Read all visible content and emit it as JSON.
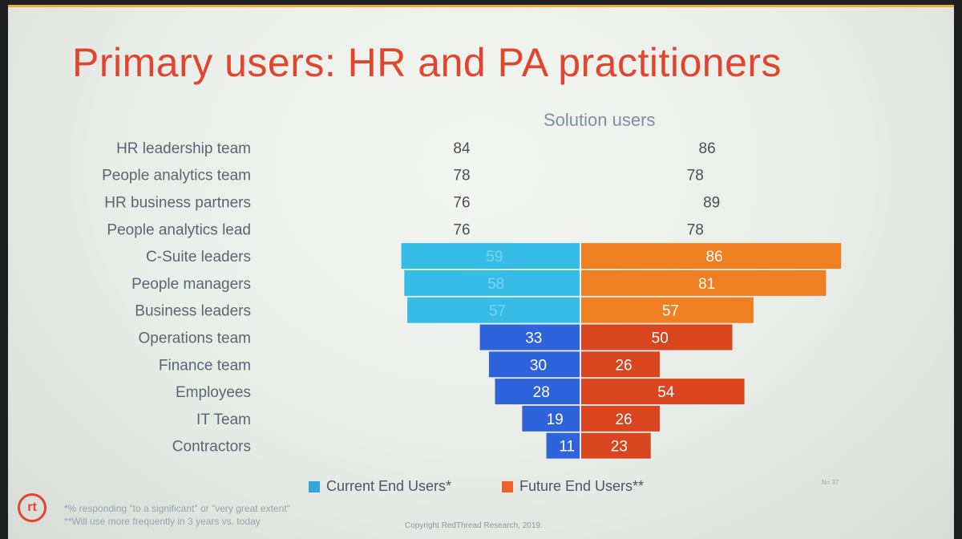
{
  "slide": {
    "title": "Primary users: HR and PA practitioners",
    "subtitle": "Solution users",
    "n_label": "N= 37",
    "footnotes": [
      "*% responding \"to a significant\" or \"very great extent\"",
      "**Will use more frequently in 3 years vs. today"
    ],
    "copyright": "Copyright RedThread Research, 2019.",
    "logo_text": "rt",
    "colors": {
      "title": "#e2452e",
      "current_top": "#35bde8",
      "current_bottom": "#2f63dc",
      "future_top": "#f07f22",
      "future_bottom": "#d9451f",
      "label_dark": "#4a5766"
    }
  },
  "chart_data": {
    "type": "bar",
    "orientation": "horizontal-diverging",
    "categories": [
      "HR leadership team",
      "People analytics team",
      "HR business partners",
      "People analytics lead",
      "C-Suite leaders",
      "People managers",
      "Business leaders",
      "Operations team",
      "Finance team",
      "Employees",
      "IT Team",
      "Contractors"
    ],
    "series": [
      {
        "name": "Current End Users*",
        "values": [
          84,
          78,
          76,
          76,
          59,
          58,
          57,
          33,
          30,
          28,
          19,
          11
        ]
      },
      {
        "name": "Future End Users**",
        "values": [
          86,
          78,
          89,
          78,
          86,
          81,
          57,
          50,
          26,
          54,
          26,
          23
        ]
      }
    ],
    "xlim": [
      0,
      100
    ],
    "legend_position": "bottom",
    "grid": false
  }
}
